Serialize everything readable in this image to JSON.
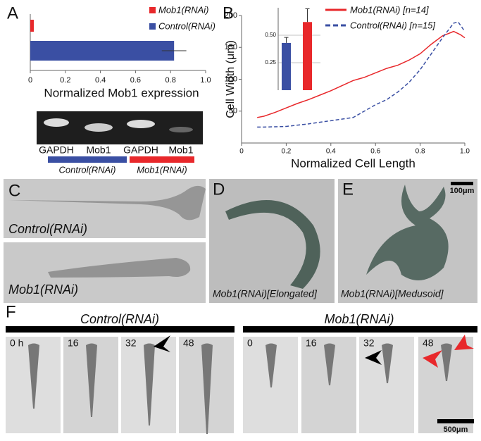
{
  "chart_data": [
    {
      "type": "bar",
      "orientation": "horizontal",
      "xlabel": "Normalized Mob1 expression",
      "series": [
        {
          "name": "Mob1(RNAi)",
          "color": "#e8282b",
          "values": [
            0.02
          ]
        },
        {
          "name": "Control(RNAi)",
          "color": "#3a4fa3",
          "values": [
            0.82
          ],
          "errors": [
            0.07
          ]
        }
      ],
      "xlim": [
        0,
        1
      ],
      "xticks": [
        0,
        0.2,
        0.4,
        0.6,
        0.8,
        {
          "value": 1,
          "label": "1.0"
        }
      ]
    },
    {
      "type": "line",
      "xlabel": "Normalized Cell Length",
      "ylabel": "Cell Width (μm)",
      "series": [
        {
          "name": "Mob1(RNAi) [n=14]",
          "color": "#e8282b",
          "dash": false,
          "x": [
            0.07,
            0.1,
            0.15,
            0.2,
            0.25,
            0.3,
            0.35,
            0.4,
            0.45,
            0.5,
            0.55,
            0.6,
            0.65,
            0.7,
            0.75,
            0.8,
            0.85,
            0.9,
            0.95,
            0.98,
            1.0
          ],
          "values": [
            40,
            42,
            48,
            55,
            62,
            68,
            75,
            82,
            90,
            98,
            103,
            110,
            117,
            122,
            130,
            140,
            155,
            168,
            175,
            170,
            165
          ]
        },
        {
          "name": "Control(RNAi) [n=15]",
          "color": "#3a4fa3",
          "dash": true,
          "x": [
            0.07,
            0.1,
            0.2,
            0.3,
            0.4,
            0.5,
            0.55,
            0.6,
            0.65,
            0.7,
            0.75,
            0.8,
            0.85,
            0.9,
            0.95,
            0.97,
            1.0
          ],
          "values": [
            25,
            25,
            26,
            30,
            35,
            40,
            50,
            60,
            68,
            80,
            95,
            115,
            140,
            165,
            188,
            190,
            175
          ]
        }
      ],
      "xlim": [
        0,
        1
      ],
      "xticks": [
        0,
        0.2,
        0.4,
        0.6,
        0.8,
        {
          "value": 1,
          "label": "1.0"
        }
      ],
      "ylim": [
        0,
        200
      ],
      "yticks": [
        50,
        100,
        150,
        200
      ]
    },
    {
      "type": "bar",
      "orientation": "vertical",
      "grid": true,
      "series": [
        {
          "color": "#3a4fa3",
          "values": [
            0.43
          ],
          "errors": [
            0.05
          ]
        },
        {
          "color": "#e8282b",
          "values": [
            0.62
          ],
          "errors": [
            0.12
          ]
        }
      ],
      "ylim": [
        0,
        0.75
      ],
      "yticks": [
        0.25,
        {
          "value": 0.5,
          "label": "0.50"
        }
      ]
    }
  ],
  "panels": {
    "A": "A",
    "B": "B",
    "C": "C",
    "D": "D",
    "E": "E",
    "F": "F"
  },
  "gel": {
    "lanes": [
      "GAPDH",
      "Mob1",
      "GAPDH",
      "Mob1"
    ],
    "groups": [
      "Control(RNAi)",
      "Mob1(RNAi)"
    ]
  },
  "photos": {
    "c_top": "Control(RNAi)",
    "c_bottom": "Mob1(RNAi)",
    "d": "Mob1(RNAi)[Elongated]",
    "e": "Mob1(RNAi)[Medusoid]",
    "scale_small": "100μm"
  },
  "timecourse": {
    "groups": [
      "Control(RNAi)",
      "Mob1(RNAi)"
    ],
    "times": [
      "0 h",
      "16",
      "32",
      "48",
      "0",
      "16",
      "32",
      "48"
    ],
    "scale": "500μm"
  }
}
